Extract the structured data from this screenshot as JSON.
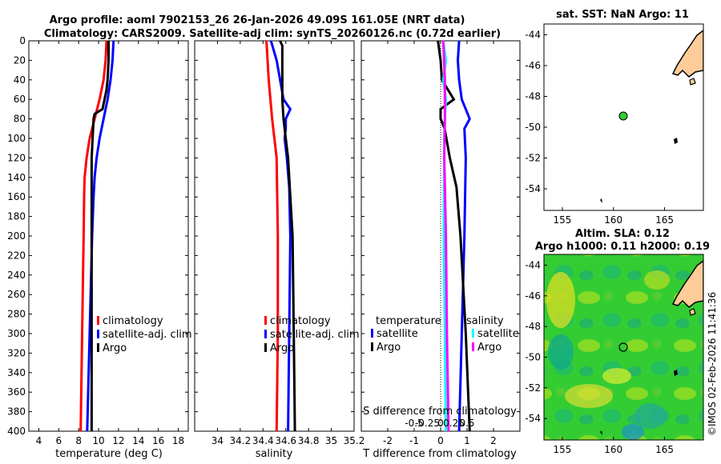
{
  "header": {
    "title_line1": "Argo profile: aoml 7902153_26 26-Jan-2026 49.09S 161.05E (NRT data)",
    "title_line2": "Climatology: CARS2009. Satellite-adj clim: synTS_20260126.nc (0.72d earlier)"
  },
  "colors": {
    "climatology": "#ff0000",
    "satellite": "#0000ff",
    "argo": "#000000",
    "sal_satellite": "#00ffff",
    "sal_argo": "#ff00ff",
    "land": "#ffcc99"
  },
  "chart_data": [
    {
      "id": "temperature",
      "type": "line",
      "xlabel": "temperature (deg C)",
      "ylabel": "",
      "xlim": [
        3,
        19
      ],
      "ylim": [
        400,
        0
      ],
      "xticks": [
        4,
        6,
        8,
        10,
        12,
        14,
        16,
        18
      ],
      "yticks": [
        0,
        20,
        40,
        60,
        80,
        100,
        120,
        140,
        160,
        180,
        200,
        220,
        240,
        260,
        280,
        300,
        320,
        340,
        360,
        380,
        400
      ],
      "legend": [
        "climatology",
        "satellite-adj. clim",
        "Argo"
      ],
      "series": [
        {
          "name": "climatology",
          "depth": [
            0,
            20,
            40,
            60,
            80,
            100,
            120,
            140,
            160,
            200,
            300,
            400
          ],
          "values": [
            10.8,
            10.7,
            10.5,
            10.1,
            9.6,
            9.1,
            8.8,
            8.6,
            8.55,
            8.5,
            8.35,
            8.2
          ]
        },
        {
          "name": "satellite-adj. clim",
          "depth": [
            0,
            20,
            40,
            60,
            80,
            100,
            120,
            140,
            160,
            200,
            300,
            400
          ],
          "values": [
            11.5,
            11.4,
            11.2,
            10.9,
            10.5,
            10.1,
            9.8,
            9.6,
            9.5,
            9.35,
            9.1,
            8.85
          ]
        },
        {
          "name": "Argo",
          "depth": [
            0,
            20,
            40,
            50,
            60,
            70,
            75,
            80,
            100,
            120,
            200,
            300,
            400
          ],
          "values": [
            11.0,
            11.0,
            10.9,
            10.8,
            10.6,
            10.4,
            9.6,
            9.5,
            9.4,
            9.3,
            9.3,
            9.3,
            9.3
          ]
        }
      ]
    },
    {
      "id": "salinity",
      "type": "line",
      "xlabel": "salinity",
      "xlim": [
        33.8,
        35.2
      ],
      "ylim": [
        400,
        0
      ],
      "xticks": [
        34,
        34.2,
        34.4,
        34.6,
        34.8,
        35,
        35.2
      ],
      "xticklabels": [
        "34",
        "34.2",
        "34.4",
        "34.6",
        "34.8",
        "35",
        "35.2"
      ],
      "legend": [
        "climatology",
        "satellite-adj. clim",
        "Argo"
      ],
      "series": [
        {
          "name": "climatology",
          "depth": [
            0,
            40,
            80,
            120,
            200,
            300,
            400
          ],
          "values": [
            34.43,
            34.45,
            34.48,
            34.52,
            34.53,
            34.53,
            34.52
          ]
        },
        {
          "name": "satellite-adj. clim",
          "depth": [
            0,
            20,
            60,
            70,
            80,
            90,
            100,
            120,
            150,
            200,
            300,
            400
          ],
          "values": [
            34.47,
            34.52,
            34.58,
            34.64,
            34.6,
            34.6,
            34.59,
            34.61,
            34.63,
            34.64,
            34.63,
            34.62
          ]
        },
        {
          "name": "Argo",
          "depth": [
            0,
            5,
            60,
            80,
            100,
            120,
            200,
            300,
            400
          ],
          "values": [
            34.55,
            34.57,
            34.57,
            34.58,
            34.6,
            34.62,
            34.66,
            34.67,
            34.68
          ]
        }
      ]
    },
    {
      "id": "difference",
      "type": "line",
      "xlabel": "T difference from climatology",
      "xlabel_top": "S difference from climatology",
      "xlim": [
        -3,
        3
      ],
      "ylim": [
        400,
        0
      ],
      "xticks": [
        -2,
        -1,
        0,
        1,
        2
      ],
      "sticks": [
        -0.5,
        -0.25,
        0,
        0.25,
        0.5
      ],
      "sticklabels": [
        "-0.5",
        "-0.25",
        "0",
        "0.25",
        "0.5"
      ],
      "legend_headers": [
        "temperature",
        "salinity"
      ],
      "legend": [
        "satellite",
        "Argo",
        "satellite",
        "Argo"
      ],
      "series": [
        {
          "name": "T satellite",
          "depth": [
            0,
            20,
            40,
            60,
            80,
            90,
            120,
            200,
            300,
            400
          ],
          "values": [
            0.7,
            0.65,
            0.7,
            0.8,
            1.1,
            0.9,
            0.95,
            0.9,
            0.8,
            0.7
          ]
        },
        {
          "name": "T Argo",
          "depth": [
            0,
            20,
            40,
            60,
            70,
            80,
            90,
            120,
            150,
            200,
            300,
            400
          ],
          "values": [
            -0.1,
            0.0,
            0.05,
            0.5,
            0.0,
            0.0,
            0.15,
            0.35,
            0.6,
            0.75,
            0.95,
            1.1
          ]
        },
        {
          "name": "S satellite",
          "depth": [
            0,
            20,
            40,
            60,
            80,
            100,
            200,
            300,
            400
          ],
          "values": [
            0.05,
            0.1,
            0.05,
            0.1,
            0.08,
            0.07,
            0.06,
            0.08,
            0.1
          ]
        },
        {
          "name": "S Argo",
          "depth": [
            0,
            40,
            80,
            120,
            200,
            300,
            400
          ],
          "values": [
            0.05,
            0.08,
            0.08,
            0.07,
            0.1,
            0.12,
            0.15
          ]
        }
      ]
    }
  ],
  "maps": {
    "sst": {
      "title": "sat. SST: NaN Argo: 11",
      "xticks": [
        "155",
        "160",
        "165"
      ],
      "yticks": [
        "-44",
        "-46",
        "-48",
        "-50",
        "-52",
        "-54"
      ],
      "float_lon": 161.05,
      "float_lat": -49.09
    },
    "sla": {
      "title_line1": "Altim. SLA: 0.12",
      "title_line2": "Argo h1000: 0.11 h2000: 0.19",
      "xticks": [
        "155",
        "160",
        "165"
      ],
      "yticks": [
        "-44",
        "-46",
        "-48",
        "-50",
        "-52",
        "-54"
      ]
    }
  },
  "footer": {
    "stamp": "©IMOS 02-Feb-2026 11:41:36"
  }
}
